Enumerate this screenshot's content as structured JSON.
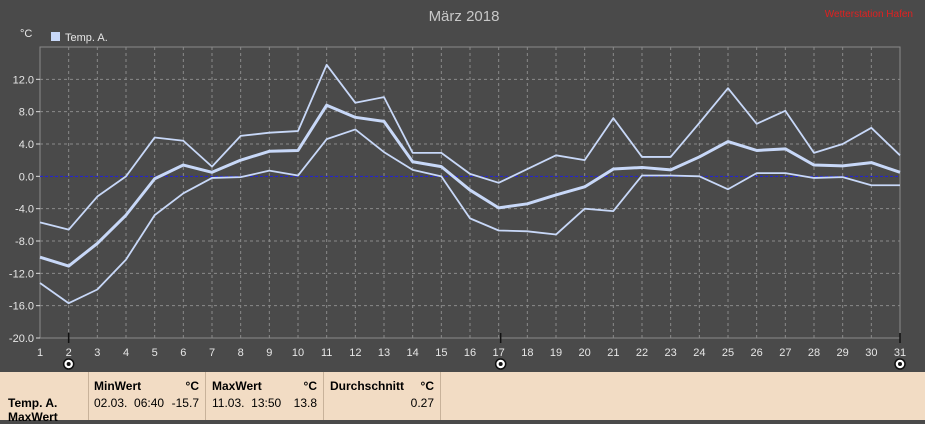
{
  "chart_data": {
    "type": "line",
    "title": "März 2018",
    "brand": "Wetterstation Hafen",
    "ylabel": "°C",
    "legend": "Temp. A.",
    "legend_position": "top-left",
    "x": [
      1,
      2,
      3,
      4,
      5,
      6,
      7,
      8,
      9,
      10,
      11,
      12,
      13,
      14,
      15,
      16,
      17,
      18,
      19,
      20,
      21,
      22,
      23,
      24,
      25,
      26,
      27,
      28,
      29,
      30,
      31
    ],
    "xlim": [
      1,
      31
    ],
    "ylim": [
      -20,
      16
    ],
    "yticks": [
      "-20.0",
      "-16.0",
      "-12.0",
      "-8.0",
      "-4.0",
      "0.0",
      "4.0",
      "8.0",
      "12.0"
    ],
    "ytick_values": [
      -20,
      -16,
      -12,
      -8,
      -4,
      0,
      4,
      8,
      12
    ],
    "grid": true,
    "zero_line": true,
    "series": [
      {
        "role": "max",
        "values": [
          -5.7,
          -6.6,
          -2.5,
          0.0,
          4.8,
          4.4,
          1.2,
          5.0,
          5.4,
          5.6,
          13.8,
          9.1,
          9.8,
          2.9,
          2.9,
          0.3,
          -0.8,
          0.9,
          2.6,
          2.0,
          7.2,
          2.4,
          2.4,
          6.6,
          10.9,
          6.5,
          8.1,
          2.9,
          4.0,
          6.0,
          2.6
        ]
      },
      {
        "role": "avg",
        "values": [
          -10.0,
          -11.1,
          -8.3,
          -4.8,
          -0.3,
          1.4,
          0.5,
          2.0,
          3.1,
          3.2,
          8.8,
          7.3,
          6.8,
          1.8,
          1.2,
          -1.7,
          -3.9,
          -3.4,
          -2.3,
          -1.3,
          0.9,
          1.1,
          0.8,
          2.4,
          4.3,
          3.2,
          3.4,
          1.4,
          1.3,
          1.7,
          0.5
        ]
      },
      {
        "role": "min",
        "values": [
          -13.2,
          -15.7,
          -14.0,
          -10.3,
          -4.8,
          -2.1,
          -0.2,
          -0.1,
          0.7,
          0.1,
          4.6,
          5.8,
          3.0,
          0.8,
          0.0,
          -5.2,
          -6.7,
          -6.8,
          -7.2,
          -4.0,
          -4.3,
          0.1,
          0.1,
          0.0,
          -1.6,
          0.4,
          0.4,
          -0.2,
          -0.1,
          -1.1,
          -1.1
        ]
      }
    ],
    "colors": {
      "series": "#c8d8f8",
      "zero_line": "#2020e0",
      "grid": "#8a8a8a",
      "plot_bg": "#4a4a4a",
      "brand": "#e02020",
      "text": "#e6e6e6"
    },
    "marker_days": [
      2,
      17,
      31
    ]
  },
  "stats": {
    "row_label_1": "Temp. A.",
    "row_label_2": "MaxWert",
    "min": {
      "header": "MinWert",
      "unit": "°C",
      "datetime": "02.03.  06:40",
      "value": "-15.7"
    },
    "max": {
      "header": "MaxWert",
      "unit": "°C",
      "datetime": "11.03.  13:50",
      "value": "13.8"
    },
    "avg": {
      "header": "Durchschnitt",
      "unit": "°C",
      "value": "0.27"
    }
  }
}
